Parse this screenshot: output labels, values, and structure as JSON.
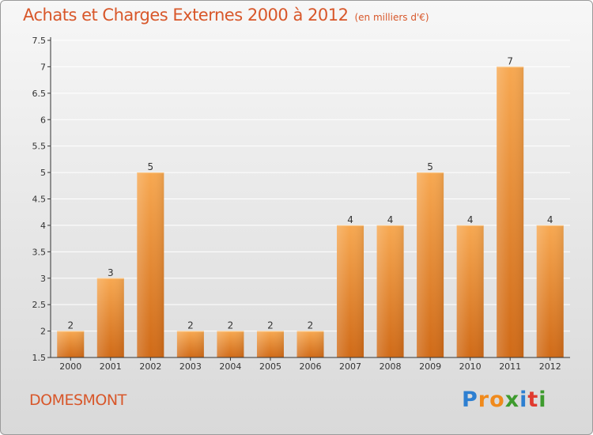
{
  "title": "Achats et Charges Externes 2000 à 2012",
  "unit": "(en milliers d'€)",
  "commune": "DOMESMONT",
  "logo": [
    "P",
    "r",
    "o",
    "x",
    "i",
    "t",
    "i"
  ],
  "colors": {
    "bar_top": "#f7a851",
    "bar_bottom": "#d06a17",
    "text_accent": "#d8572a",
    "axis": "#333333",
    "grid": "#ffffff"
  },
  "chart_data": {
    "type": "bar",
    "title": "Achats et Charges Externes 2000 à 2012",
    "subtitle": "(en milliers d'€)",
    "xlabel": "",
    "ylabel": "",
    "categories": [
      "2000",
      "2001",
      "2002",
      "2003",
      "2004",
      "2005",
      "2006",
      "2007",
      "2008",
      "2009",
      "2010",
      "2011",
      "2012"
    ],
    "values": [
      2,
      3,
      5,
      2,
      2,
      2,
      2,
      4,
      4,
      5,
      4,
      7,
      4
    ],
    "value_labels": [
      "2",
      "3",
      "5",
      "2",
      "2",
      "2",
      "2",
      "4",
      "4",
      "5",
      "4",
      "7",
      "4"
    ],
    "ylim": [
      1.5,
      7.5
    ],
    "yticks": [
      "1.5",
      "2",
      "2.5",
      "3",
      "3.5",
      "4",
      "4.5",
      "5",
      "5.5",
      "6",
      "6.5",
      "7",
      "7.5"
    ],
    "grid": true,
    "legend": "none"
  }
}
